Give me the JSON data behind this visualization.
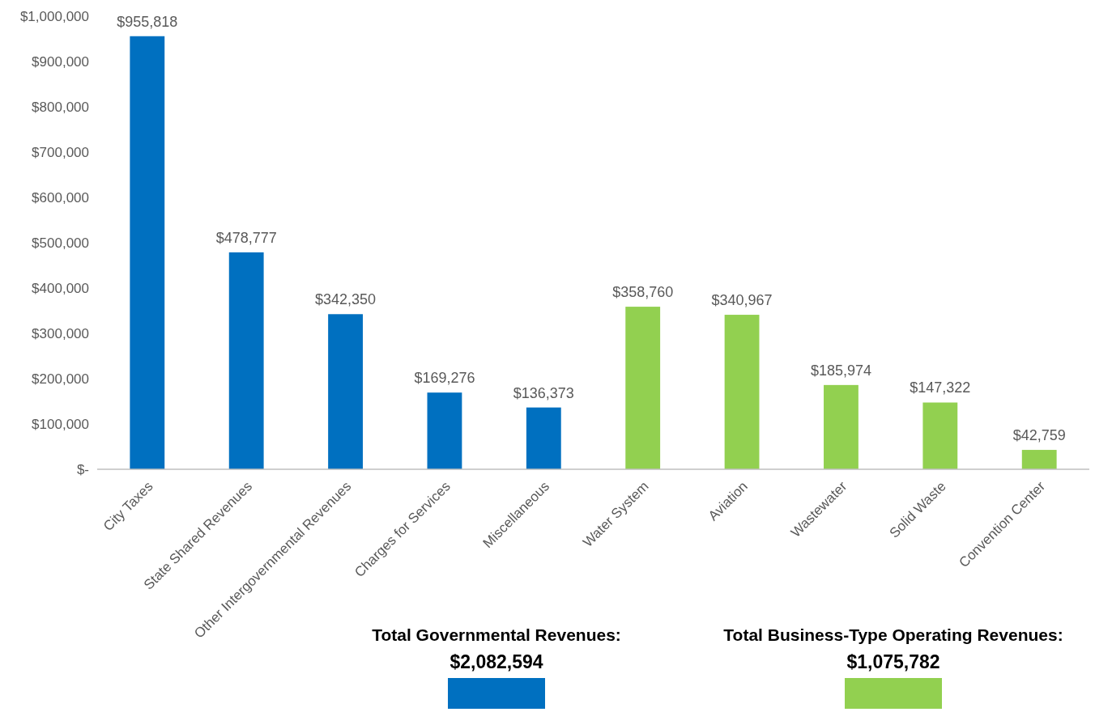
{
  "chart_data": {
    "type": "bar",
    "categories": [
      "City Taxes",
      "State Shared Revenues",
      "Other Intergovernmental Revenues",
      "Charges for Services",
      "Miscellaneous",
      "Water System",
      "Aviation",
      "Wastewater",
      "Solid Waste",
      "Convention Center"
    ],
    "series": [
      {
        "color": "#0070c0",
        "values": [
          955818,
          478777,
          342350,
          169276,
          136373,
          null,
          null,
          null,
          null,
          null
        ],
        "value_labels": [
          "$955,818",
          "$478,777",
          "$342,350",
          "$169,276",
          "$136,373",
          null,
          null,
          null,
          null,
          null
        ]
      },
      {
        "color": "#92d050",
        "values": [
          null,
          null,
          null,
          null,
          null,
          358760,
          340967,
          185974,
          147322,
          42759
        ],
        "value_labels": [
          null,
          null,
          null,
          null,
          null,
          "$358,760",
          "$340,967",
          "$185,974",
          "$147,322",
          "$42,759"
        ]
      }
    ],
    "ylim": [
      0,
      1000000
    ],
    "yticks": [
      {
        "value": 0,
        "label": "$-"
      },
      {
        "value": 100000,
        "label": "$100,000"
      },
      {
        "value": 200000,
        "label": "$200,000"
      },
      {
        "value": 300000,
        "label": "$300,000"
      },
      {
        "value": 400000,
        "label": "$400,000"
      },
      {
        "value": 500000,
        "label": "$500,000"
      },
      {
        "value": 600000,
        "label": "$600,000"
      },
      {
        "value": 700000,
        "label": "$700,000"
      },
      {
        "value": 800000,
        "label": "$800,000"
      },
      {
        "value": 900000,
        "label": "$900,000"
      },
      {
        "value": 1000000,
        "label": "$1,000,000"
      }
    ],
    "annotations": [
      "Total Governmental Revenues:\n$2,082,594",
      "Total Business-Type Operating Revenues:\n$1,075,782"
    ],
    "grid": false
  }
}
